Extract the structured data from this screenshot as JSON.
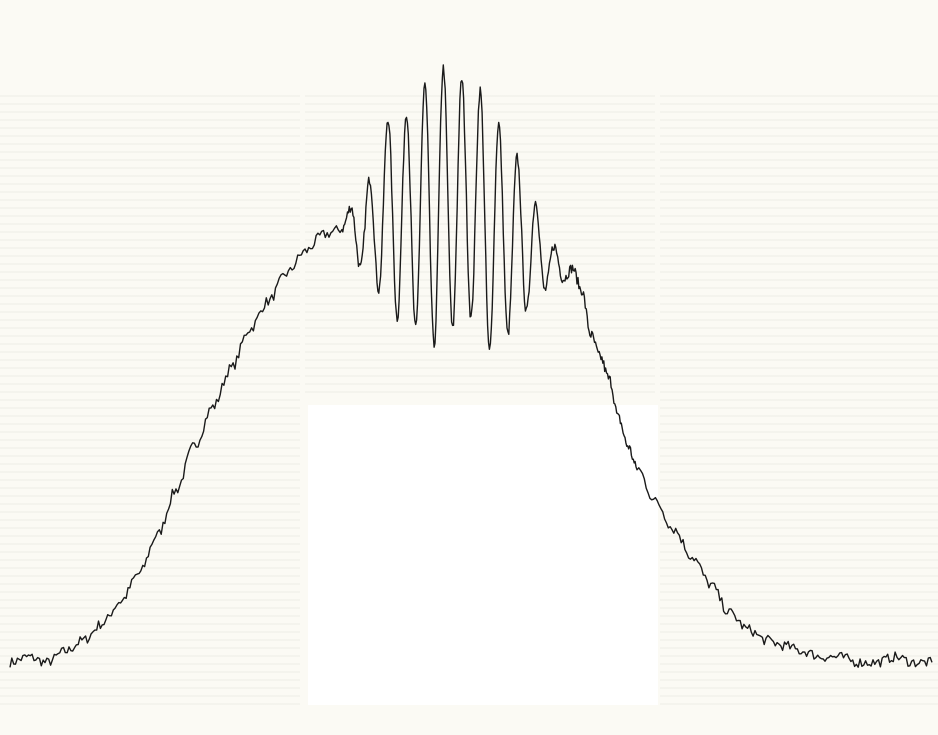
{
  "chart_data": {
    "type": "line",
    "title": "",
    "xlabel": "",
    "ylabel": "",
    "axes_visible": false,
    "grid": false,
    "legend": "none",
    "line_color": "#1a1a1a",
    "xlim": [
      0,
      100
    ],
    "ylim": [
      0,
      100
    ],
    "series": [
      {
        "x": [
          0,
          2,
          4,
          6,
          8,
          10,
          12,
          14,
          16,
          18,
          20,
          22,
          24,
          26,
          28,
          30,
          32,
          34,
          36,
          37,
          38,
          39,
          40,
          41,
          42,
          43,
          44,
          45,
          46,
          47,
          48,
          49,
          50,
          51,
          52,
          53,
          54,
          55,
          56,
          57,
          58,
          59,
          60,
          61,
          62,
          63,
          64,
          65,
          66,
          67,
          68,
          70,
          72,
          74,
          76,
          78,
          80,
          82,
          84,
          86,
          88,
          90,
          92,
          94,
          96,
          98,
          100
        ],
        "y": [
          1,
          2,
          1,
          3,
          5,
          8,
          12,
          17,
          24,
          32,
          40,
          47,
          54,
          61,
          66,
          71,
          75,
          78,
          79,
          83,
          72,
          88,
          68,
          99,
          63,
          100,
          61,
          105,
          58,
          108,
          61,
          106,
          63,
          104,
          57,
          98,
          60,
          92,
          64,
          84,
          68,
          76,
          70,
          72,
          68,
          60,
          56,
          52,
          45,
          40,
          36,
          30,
          25,
          20,
          15,
          10,
          7,
          5,
          4,
          3,
          2,
          2,
          1,
          1,
          2,
          1,
          1
        ]
      }
    ]
  }
}
